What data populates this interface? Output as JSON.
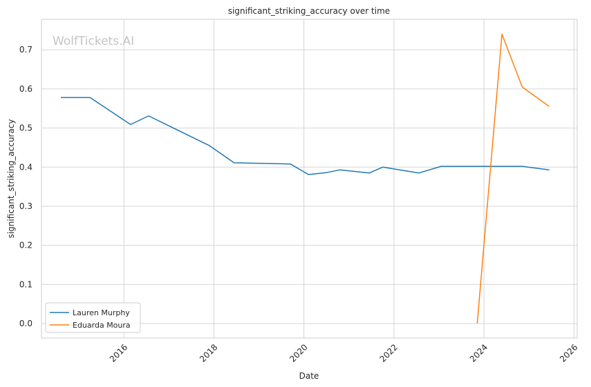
{
  "chart_data": {
    "type": "line",
    "title": "significant_striking_accuracy over time",
    "xlabel": "Date",
    "ylabel": "significant_striking_accuracy",
    "watermark": "WolfTickets.AI",
    "xlim": [
      2014.17,
      2026.07
    ],
    "ylim": [
      -0.037,
      0.778
    ],
    "x_ticks": [
      2016,
      2018,
      2020,
      2022,
      2024,
      2026
    ],
    "x_tick_labels": [
      "2016",
      "2018",
      "2020",
      "2022",
      "2024",
      "2026"
    ],
    "y_ticks": [
      0.0,
      0.1,
      0.2,
      0.3,
      0.4,
      0.5,
      0.6,
      0.7
    ],
    "y_tick_labels": [
      "0.0",
      "0.1",
      "0.2",
      "0.3",
      "0.4",
      "0.5",
      "0.6",
      "0.7"
    ],
    "grid": true,
    "legend_position": "lower-left",
    "series": [
      {
        "name": "Lauren Murphy",
        "color": "#1f77b4",
        "x": [
          2014.6,
          2015.25,
          2016.15,
          2016.55,
          2017.9,
          2018.45,
          2019.7,
          2020.1,
          2020.5,
          2020.8,
          2021.45,
          2021.75,
          2022.55,
          2023.05,
          2024.85,
          2025.45
        ],
        "y": [
          0.578,
          0.578,
          0.509,
          0.531,
          0.455,
          0.411,
          0.408,
          0.381,
          0.386,
          0.393,
          0.385,
          0.4,
          0.385,
          0.402,
          0.402,
          0.393
        ]
      },
      {
        "name": "Eduarda Moura",
        "color": "#ff7f0e",
        "x": [
          2023.85,
          2024.4,
          2024.85,
          2025.45
        ],
        "y": [
          0.0,
          0.74,
          0.605,
          0.555
        ]
      }
    ]
  }
}
